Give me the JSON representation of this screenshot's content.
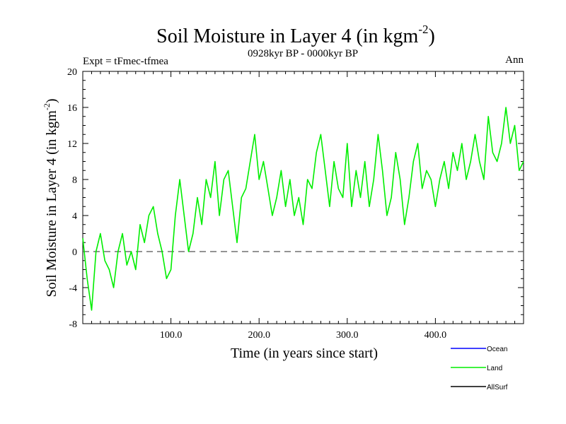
{
  "chart_data": {
    "type": "line",
    "title_main": "Soil Moisture in Layer 4 (in kgm",
    "title_sup": "-2",
    "title_close": ")",
    "subtitle": "0928kyr BP - 0000kyr BP",
    "expt_label": "Expt = tFmec-tfmea",
    "season_label": "Ann",
    "xlabel": "Time (in years since start)",
    "ylabel_main": "Soil Moisture in Layer 4 (in kgm",
    "ylabel_sup": "-2",
    "ylabel_close": ")",
    "xlim": [
      0,
      500
    ],
    "ylim": [
      -8,
      20
    ],
    "x_ticks": [
      100,
      200,
      300,
      400
    ],
    "x_tick_labels": [
      "100.0",
      "200.0",
      "300.0",
      "400.0"
    ],
    "y_ticks": [
      -8,
      -4,
      0,
      4,
      8,
      12,
      16,
      20
    ],
    "y_tick_labels": [
      "-8",
      "-4",
      "0",
      "4",
      "8",
      "12",
      "16",
      "20"
    ],
    "zero_line": 0,
    "legend": [
      {
        "name": "Ocean",
        "color": "#0000ff"
      },
      {
        "name": "Land",
        "color": "#00ee00"
      },
      {
        "name": "AllSurf",
        "color": "#000000"
      }
    ],
    "series": [
      {
        "name": "Land",
        "color": "#00ee00",
        "x": [
          0,
          5,
          10,
          15,
          20,
          25,
          30,
          35,
          40,
          45,
          50,
          55,
          60,
          65,
          70,
          75,
          80,
          85,
          90,
          95,
          100,
          105,
          110,
          115,
          120,
          125,
          130,
          135,
          140,
          145,
          150,
          155,
          160,
          165,
          170,
          175,
          180,
          185,
          190,
          195,
          200,
          205,
          210,
          215,
          220,
          225,
          230,
          235,
          240,
          245,
          250,
          255,
          260,
          265,
          270,
          275,
          280,
          285,
          290,
          295,
          300,
          305,
          310,
          315,
          320,
          325,
          330,
          335,
          340,
          345,
          350,
          355,
          360,
          365,
          370,
          375,
          380,
          385,
          390,
          395,
          400,
          405,
          410,
          415,
          420,
          425,
          430,
          435,
          440,
          445,
          450,
          455,
          460,
          465,
          470,
          475,
          480,
          485,
          490,
          495,
          500
        ],
        "values": [
          1.5,
          -3,
          -6.5,
          0,
          2,
          -1,
          -2,
          -4,
          0,
          2,
          -1.5,
          0,
          -2,
          3,
          1,
          4,
          5,
          2,
          0,
          -3,
          -2,
          4,
          8,
          4,
          0,
          2,
          6,
          3,
          8,
          6,
          10,
          4,
          8,
          9,
          5,
          1,
          6,
          7,
          10,
          13,
          8,
          10,
          7,
          4,
          6,
          9,
          5,
          8,
          4,
          6,
          3,
          8,
          7,
          11,
          13,
          9,
          5,
          10,
          7,
          6,
          12,
          5,
          9,
          6,
          10,
          5,
          8,
          13,
          9,
          4,
          6,
          11,
          8,
          3,
          6,
          10,
          12,
          7,
          9,
          8,
          5,
          8,
          10,
          7,
          11,
          9,
          12,
          8,
          10,
          13,
          10,
          8,
          15,
          11,
          10,
          12,
          16,
          12,
          14,
          9,
          10
        ]
      }
    ]
  }
}
